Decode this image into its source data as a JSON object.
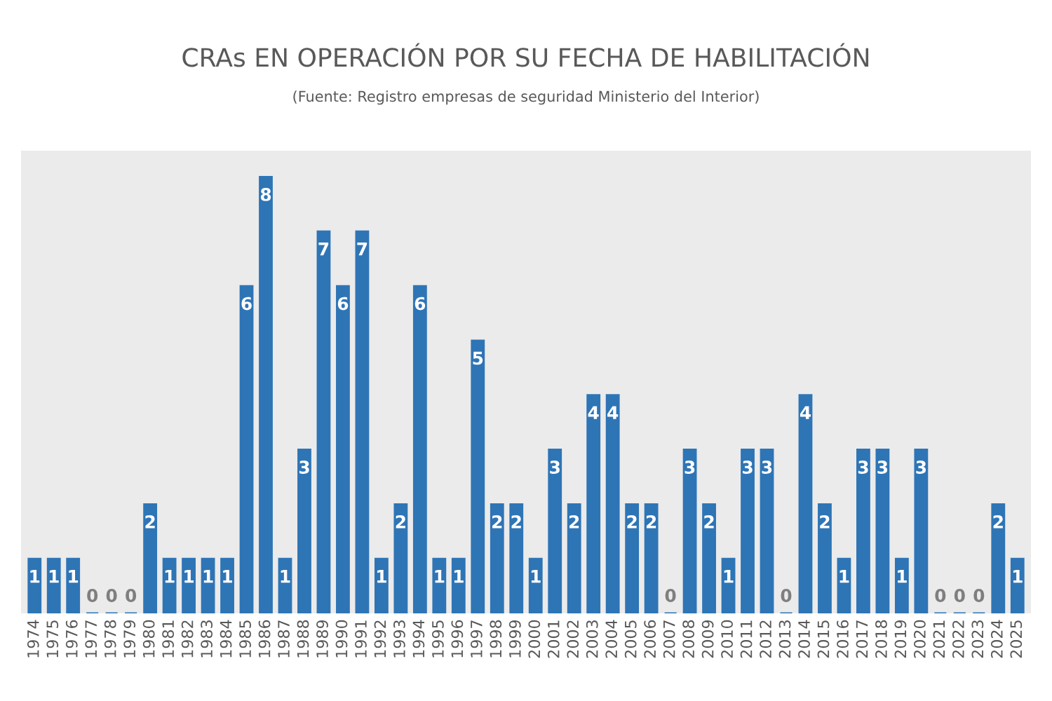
{
  "chart_data": {
    "type": "bar",
    "title": "CRAs EN OPERACIÓN POR SU FECHA DE HABILITACIÓN",
    "subtitle": "(Fuente: Registro empresas de seguridad Ministerio del Interior)",
    "categories": [
      "1974",
      "1975",
      "1976",
      "1977",
      "1978",
      "1979",
      "1980",
      "1981",
      "1982",
      "1983",
      "1984",
      "1985",
      "1986",
      "1987",
      "1988",
      "1989",
      "1990",
      "1991",
      "1992",
      "1993",
      "1994",
      "1995",
      "1996",
      "1997",
      "1998",
      "1999",
      "2000",
      "2001",
      "2002",
      "2003",
      "2004",
      "2005",
      "2006",
      "2007",
      "2008",
      "2009",
      "2010",
      "2011",
      "2012",
      "2013",
      "2014",
      "2015",
      "2016",
      "2017",
      "2018",
      "2019",
      "2020",
      "2021",
      "2022",
      "2023",
      "2024",
      "2025"
    ],
    "values": [
      1,
      1,
      1,
      0,
      0,
      0,
      2,
      1,
      1,
      1,
      1,
      6,
      8,
      1,
      3,
      7,
      6,
      7,
      1,
      2,
      6,
      1,
      1,
      5,
      2,
      2,
      1,
      3,
      2,
      4,
      4,
      2,
      2,
      0,
      3,
      2,
      1,
      3,
      3,
      0,
      4,
      2,
      1,
      3,
      3,
      1,
      3,
      0,
      0,
      0,
      2,
      1
    ],
    "color": "#2e75b6",
    "data_labels": true,
    "tick_labels": "x",
    "grid": false,
    "legend": false
  }
}
